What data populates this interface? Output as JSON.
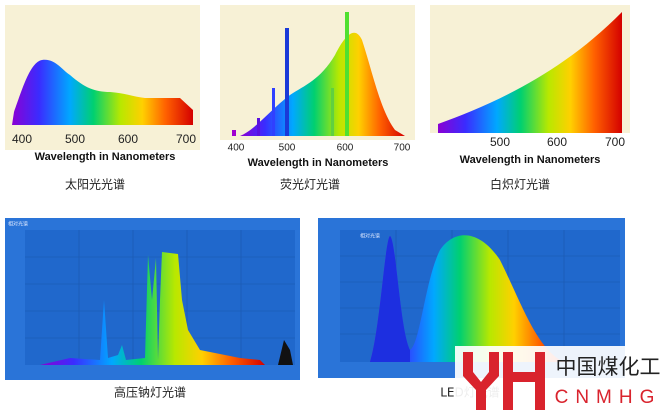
{
  "panels": [
    {
      "ticks": [
        "400",
        "500",
        "600",
        "700"
      ],
      "axis_label": "Wavelength in Nanometers",
      "caption": "太阳光光谱"
    },
    {
      "ticks": [
        "400",
        "500",
        "600",
        "700"
      ],
      "axis_label": "Wavelength in Nanometers",
      "caption": "荧光灯光谱"
    },
    {
      "ticks": [
        "500",
        "600",
        "700"
      ],
      "axis_label": "Wavelength in Nanometers",
      "caption": "白炽灯光谱"
    },
    {
      "title": "相对光谱",
      "caption": "高压钠灯光谱"
    },
    {
      "title": "相对光谱",
      "caption": "LED灯光谱"
    }
  ],
  "logo": {
    "name": "中国煤化工",
    "code": "CNMHG"
  }
}
